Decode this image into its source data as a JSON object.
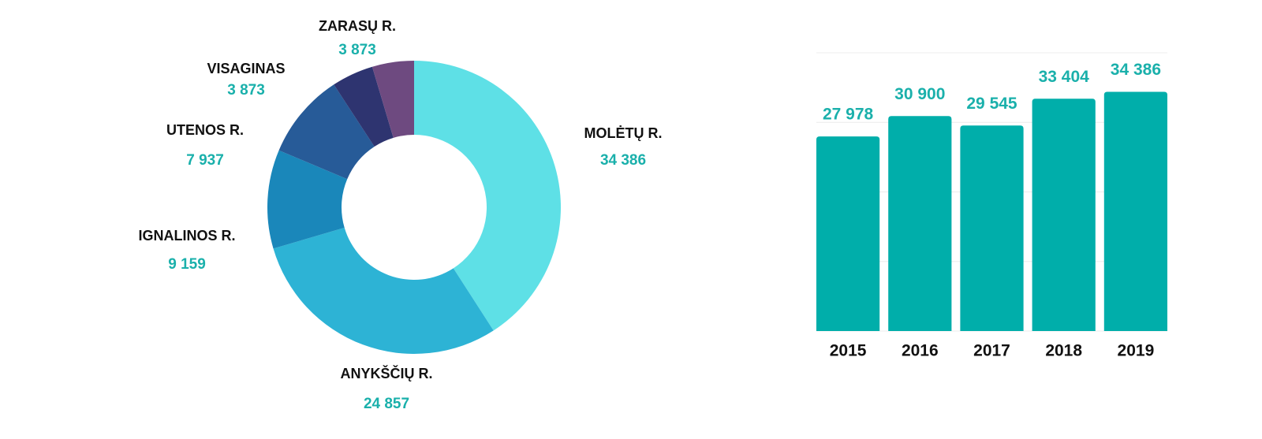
{
  "chart_data": [
    {
      "type": "donut",
      "categories": [
        "MOLĖTŲ R.",
        "ANYKŠČIŲ R.",
        "IGNALINOS R.",
        "UTENOS R.",
        "VISAGINAS",
        "ZARASŲ R."
      ],
      "values": [
        34386,
        24857,
        9159,
        7937,
        3873,
        3873
      ],
      "value_labels": [
        "34 386",
        "24 857",
        "9 159",
        "7 937",
        "3 873",
        "3 873"
      ],
      "colors": [
        "#5ee0e6",
        "#2db3d5",
        "#1a87ba",
        "#275b98",
        "#2e3470",
        "#6e4a80"
      ]
    },
    {
      "type": "bar",
      "categories": [
        "2015",
        "2016",
        "2017",
        "2018",
        "2019"
      ],
      "values": [
        27978,
        30900,
        29545,
        33404,
        34386
      ],
      "value_labels": [
        "27 978",
        "30 900",
        "29 545",
        "33 404",
        "34 386"
      ],
      "color": "#00aeaa",
      "ylim": [
        0,
        40000
      ],
      "yticks": [
        0,
        10000,
        20000,
        30000,
        40000
      ],
      "grid": true
    }
  ]
}
